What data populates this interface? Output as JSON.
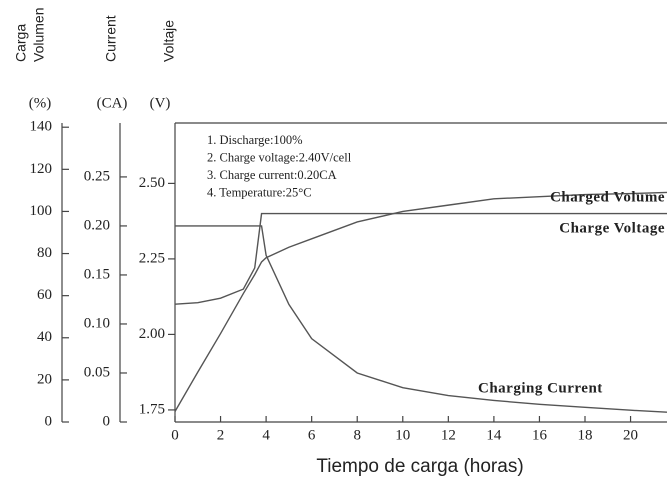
{
  "chart_data": {
    "type": "line",
    "y_title_lines": [
      "Carga",
      "Volumen"
    ],
    "y_unit": "(%)",
    "y2_title": "Current",
    "y2_unit": "(CA)",
    "y3_title": "Voltaje",
    "y3_unit": "(V)",
    "xlabel": "Tiempo de carga (horas)",
    "notes": [
      "1. Discharge:100%",
      "2. Charge voltage:2.40V/cell",
      "3. Charge current:0.20CA",
      "4. Temperature:25°C"
    ],
    "x": [
      0,
      1,
      2,
      3,
      3.5,
      3.8,
      4,
      5,
      6,
      8,
      10,
      12,
      14,
      16,
      18,
      20,
      21.6
    ],
    "xlim": [
      0,
      21.6
    ],
    "xticks": [
      0,
      2,
      4,
      6,
      8,
      10,
      12,
      14,
      16,
      18,
      20
    ],
    "ylim": [
      0,
      142
    ],
    "yticks": [
      0,
      20,
      40,
      60,
      80,
      100,
      120,
      140
    ],
    "y2lim": [
      0,
      0.305
    ],
    "y2ticks": [
      0,
      0.05,
      {
        "value": 0.1,
        "label": "0.10"
      },
      0.15,
      {
        "value": 0.2,
        "label": "0.20"
      },
      0.25
    ],
    "y3lim": [
      1.71,
      2.7
    ],
    "y3ticks": [
      1.75,
      {
        "value": 2,
        "label": "2.00"
      },
      2.25,
      {
        "value": 2.5,
        "label": "2.50"
      }
    ],
    "series": [
      {
        "name": "Charged Volume",
        "color": "#555555",
        "axis": "y",
        "values": [
          5,
          23.7,
          42,
          61,
          70,
          76,
          78,
          83,
          87,
          95,
          100,
          103,
          106,
          107,
          108,
          108.5,
          109
        ]
      },
      {
        "name": "Charge Voltage",
        "color": "#555555",
        "axis": "y3",
        "values": [
          2.1,
          2.105,
          2.12,
          2.15,
          2.22,
          2.4,
          2.4,
          2.4,
          2.4,
          2.4,
          2.4,
          2.4,
          2.4,
          2.4,
          2.4,
          2.4,
          2.4
        ]
      },
      {
        "name": "Charging Current",
        "color": "#555555",
        "axis": "y2",
        "values": [
          0.2,
          0.2,
          0.2,
          0.2,
          0.2,
          0.2,
          0.17,
          0.12,
          0.085,
          0.05,
          0.035,
          0.027,
          0.022,
          0.018,
          0.015,
          0.012,
          0.01
        ]
      }
    ]
  }
}
